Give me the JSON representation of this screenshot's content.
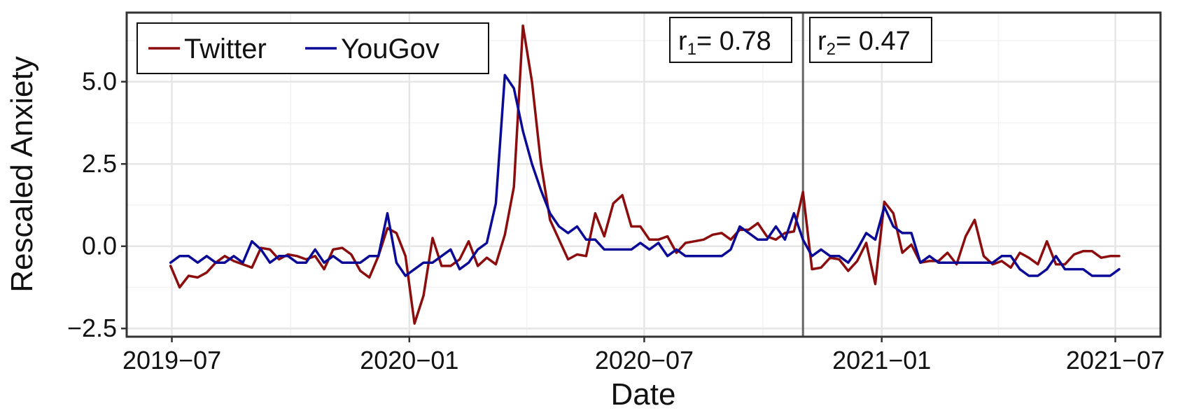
{
  "chart_data": {
    "type": "line",
    "xlabel": "Date",
    "ylabel": "Rescaled Anxiety",
    "x_tick_labels": [
      "2019−07",
      "2020−01",
      "2020−07",
      "2021−01",
      "2021−07"
    ],
    "y_tick_labels": [
      "−2.5",
      "0.0",
      "2.5",
      "5.0"
    ],
    "y_ticks": [
      -2.5,
      0.0,
      2.5,
      5.0
    ],
    "x_ticks": [
      "2019-07-01",
      "2020-01-01",
      "2020-07-01",
      "2021-01-01",
      "2021-07-01"
    ],
    "xlim": [
      "2019-05-27",
      "2021-08-05"
    ],
    "ylim": [
      -2.75,
      7.1
    ],
    "grid": true,
    "legend_position": "top-left",
    "vline": {
      "x": "2020-11-01"
    },
    "annotations": [
      {
        "base": "r",
        "sub": "1",
        "text": "= 0.78"
      },
      {
        "base": "r",
        "sub": "2",
        "text": "= 0.47"
      }
    ],
    "series": [
      {
        "name": "Twitter",
        "color": "#8b0d0d",
        "x": [
          "2019-06-30",
          "2019-07-07",
          "2019-07-14",
          "2019-07-21",
          "2019-07-28",
          "2019-08-04",
          "2019-08-11",
          "2019-08-18",
          "2019-08-25",
          "2019-09-01",
          "2019-09-08",
          "2019-09-15",
          "2019-09-22",
          "2019-09-29",
          "2019-10-06",
          "2019-10-13",
          "2019-10-20",
          "2019-10-27",
          "2019-11-03",
          "2019-11-10",
          "2019-11-17",
          "2019-11-24",
          "2019-12-01",
          "2019-12-08",
          "2019-12-15",
          "2019-12-22",
          "2019-12-29",
          "2020-01-05",
          "2020-01-12",
          "2020-01-19",
          "2020-01-26",
          "2020-02-02",
          "2020-02-09",
          "2020-02-16",
          "2020-02-23",
          "2020-03-01",
          "2020-03-08",
          "2020-03-15",
          "2020-03-22",
          "2020-03-29",
          "2020-04-05",
          "2020-04-12",
          "2020-04-19",
          "2020-04-26",
          "2020-05-03",
          "2020-05-10",
          "2020-05-17",
          "2020-05-24",
          "2020-05-31",
          "2020-06-07",
          "2020-06-14",
          "2020-06-21",
          "2020-06-28",
          "2020-07-05",
          "2020-07-12",
          "2020-07-19",
          "2020-07-26",
          "2020-08-02",
          "2020-08-09",
          "2020-08-16",
          "2020-08-23",
          "2020-08-30",
          "2020-09-06",
          "2020-09-13",
          "2020-09-20",
          "2020-09-27",
          "2020-10-04",
          "2020-10-11",
          "2020-10-18",
          "2020-10-25",
          "2020-11-01",
          "2020-11-08",
          "2020-11-15",
          "2020-11-22",
          "2020-11-29",
          "2020-12-06",
          "2020-12-13",
          "2020-12-20",
          "2020-12-27",
          "2021-01-03",
          "2021-01-10",
          "2021-01-17",
          "2021-01-24",
          "2021-01-31",
          "2021-02-07",
          "2021-02-14",
          "2021-02-21",
          "2021-02-28",
          "2021-03-07",
          "2021-03-14",
          "2021-03-21",
          "2021-03-28",
          "2021-04-04",
          "2021-04-11",
          "2021-04-18",
          "2021-04-25",
          "2021-05-02",
          "2021-05-09",
          "2021-05-16",
          "2021-05-23",
          "2021-05-30",
          "2021-06-06",
          "2021-06-13",
          "2021-06-20",
          "2021-06-27",
          "2021-07-04"
        ],
        "y": [
          -0.6,
          -1.25,
          -0.9,
          -0.95,
          -0.8,
          -0.5,
          -0.3,
          -0.45,
          -0.55,
          -0.65,
          -0.05,
          -0.1,
          -0.4,
          -0.25,
          -0.3,
          -0.4,
          -0.3,
          -0.7,
          -0.1,
          -0.05,
          -0.25,
          -0.75,
          -0.95,
          -0.3,
          0.55,
          0.4,
          -0.3,
          -2.35,
          -1.5,
          0.25,
          -0.6,
          -0.6,
          -0.4,
          0.15,
          -0.6,
          -0.35,
          -0.55,
          0.35,
          1.8,
          6.7,
          5.0,
          2.5,
          0.8,
          0.2,
          -0.4,
          -0.25,
          -0.3,
          1.0,
          0.3,
          1.3,
          1.55,
          0.6,
          0.6,
          0.2,
          0.2,
          0.3,
          -0.2,
          0.1,
          0.15,
          0.2,
          0.35,
          0.4,
          0.2,
          0.5,
          0.5,
          0.7,
          0.3,
          0.2,
          0.4,
          0.45,
          1.65,
          -0.7,
          -0.65,
          -0.35,
          -0.4,
          -0.75,
          -0.45,
          0.1,
          -1.15,
          1.35,
          1.0,
          -0.2,
          0.05,
          -0.5,
          -0.45,
          -0.45,
          -0.2,
          -0.55,
          0.3,
          0.8,
          -0.3,
          -0.55,
          -0.45,
          -0.65,
          -0.2,
          -0.35,
          -0.55,
          0.15,
          -0.55,
          -0.55,
          -0.25,
          -0.15,
          -0.15,
          -0.35,
          -0.3,
          -0.3
        ]
      },
      {
        "name": "YouGov",
        "color": "#0a0a96",
        "x": [
          "2019-06-30",
          "2019-07-07",
          "2019-07-14",
          "2019-07-21",
          "2019-07-28",
          "2019-08-04",
          "2019-08-11",
          "2019-08-18",
          "2019-08-25",
          "2019-09-01",
          "2019-09-08",
          "2019-09-15",
          "2019-09-22",
          "2019-09-29",
          "2019-10-06",
          "2019-10-13",
          "2019-10-20",
          "2019-10-27",
          "2019-11-03",
          "2019-11-10",
          "2019-11-17",
          "2019-11-24",
          "2019-12-01",
          "2019-12-08",
          "2019-12-15",
          "2019-12-22",
          "2019-12-29",
          "2020-01-05",
          "2020-01-12",
          "2020-01-19",
          "2020-01-26",
          "2020-02-02",
          "2020-02-09",
          "2020-02-16",
          "2020-02-23",
          "2020-03-01",
          "2020-03-08",
          "2020-03-15",
          "2020-03-22",
          "2020-03-29",
          "2020-04-05",
          "2020-04-12",
          "2020-04-19",
          "2020-04-26",
          "2020-05-03",
          "2020-05-10",
          "2020-05-17",
          "2020-05-24",
          "2020-05-31",
          "2020-06-07",
          "2020-06-14",
          "2020-06-21",
          "2020-06-28",
          "2020-07-05",
          "2020-07-12",
          "2020-07-19",
          "2020-07-26",
          "2020-08-02",
          "2020-08-09",
          "2020-08-16",
          "2020-08-23",
          "2020-08-30",
          "2020-09-06",
          "2020-09-13",
          "2020-09-20",
          "2020-09-27",
          "2020-10-04",
          "2020-10-11",
          "2020-10-18",
          "2020-10-25",
          "2020-11-01",
          "2020-11-08",
          "2020-11-15",
          "2020-11-22",
          "2020-11-29",
          "2020-12-06",
          "2020-12-13",
          "2020-12-20",
          "2020-12-27",
          "2021-01-03",
          "2021-01-10",
          "2021-01-17",
          "2021-01-24",
          "2021-01-31",
          "2021-02-07",
          "2021-02-14",
          "2021-02-21",
          "2021-02-28",
          "2021-03-07",
          "2021-03-14",
          "2021-03-21",
          "2021-03-28",
          "2021-04-04",
          "2021-04-11",
          "2021-04-18",
          "2021-04-25",
          "2021-05-02",
          "2021-05-09",
          "2021-05-16",
          "2021-05-23",
          "2021-05-30",
          "2021-06-06",
          "2021-06-13",
          "2021-06-20",
          "2021-06-27",
          "2021-07-04"
        ],
        "y": [
          -0.5,
          -0.3,
          -0.3,
          -0.5,
          -0.3,
          -0.5,
          -0.5,
          -0.3,
          -0.5,
          0.15,
          -0.1,
          -0.5,
          -0.3,
          -0.3,
          -0.5,
          -0.5,
          -0.1,
          -0.5,
          -0.3,
          -0.5,
          -0.5,
          -0.5,
          -0.3,
          -0.3,
          1.0,
          -0.5,
          -0.9,
          -0.7,
          -0.5,
          -0.5,
          -0.3,
          -0.1,
          -0.7,
          -0.5,
          -0.1,
          0.1,
          1.3,
          5.2,
          4.8,
          3.5,
          2.5,
          1.7,
          1.0,
          0.6,
          0.4,
          0.6,
          0.2,
          0.2,
          -0.1,
          -0.1,
          -0.1,
          -0.1,
          0.1,
          -0.1,
          0.1,
          -0.3,
          -0.1,
          -0.3,
          -0.3,
          -0.3,
          -0.3,
          -0.3,
          -0.1,
          0.6,
          0.4,
          0.2,
          0.2,
          0.6,
          0.2,
          1.0,
          0.2,
          -0.3,
          -0.1,
          -0.3,
          -0.3,
          -0.5,
          -0.1,
          0.4,
          0.2,
          1.2,
          0.6,
          0.4,
          0.4,
          -0.5,
          -0.3,
          -0.5,
          -0.5,
          -0.5,
          -0.5,
          -0.5,
          -0.5,
          -0.5,
          -0.3,
          -0.3,
          -0.7,
          -0.9,
          -0.9,
          -0.7,
          -0.3,
          -0.7,
          -0.7,
          -0.7,
          -0.9,
          -0.9,
          -0.9,
          -0.7
        ]
      }
    ]
  }
}
